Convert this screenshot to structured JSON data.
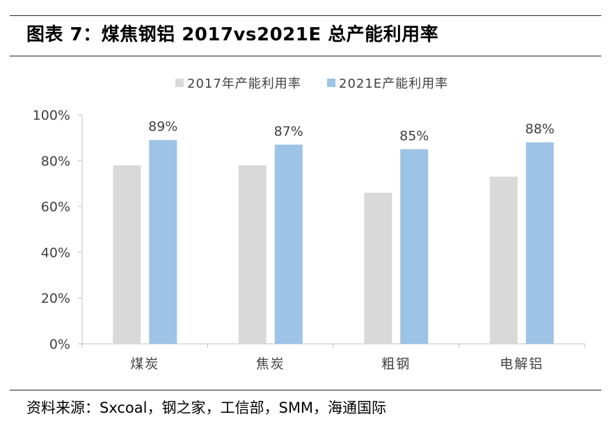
{
  "header": {
    "title": "图表 7：煤焦钢铝 2017vs2021E 总产能利用率"
  },
  "footer": {
    "source": "资料来源：Sxcoal，钢之家，工信部，SMM，海通国际"
  },
  "colors": {
    "series_2017": "#d9d9d9",
    "series_2021E": "#9dc3e6",
    "axis": "#bfbfbf",
    "text": "#404040"
  },
  "chart_data": {
    "type": "bar",
    "title": "",
    "xlabel": "",
    "ylabel": "",
    "categories": [
      "煤炭",
      "焦炭",
      "粗钢",
      "电解铝"
    ],
    "series": [
      {
        "name": "2017年产能利用率",
        "values": [
          78,
          78,
          66,
          73
        ],
        "data_labels": [
          "",
          "",
          "",
          ""
        ]
      },
      {
        "name": "2021E产能利用率",
        "values": [
          89,
          87,
          85,
          88
        ],
        "data_labels": [
          "89%",
          "87%",
          "85%",
          "88%"
        ]
      }
    ],
    "ylim": [
      0,
      100
    ],
    "yticks": [
      "0%",
      "20%",
      "40%",
      "60%",
      "80%",
      "100%"
    ],
    "ytick_values": [
      0,
      20,
      40,
      60,
      80,
      100
    ],
    "legend_position": "top-center",
    "grid": false
  }
}
